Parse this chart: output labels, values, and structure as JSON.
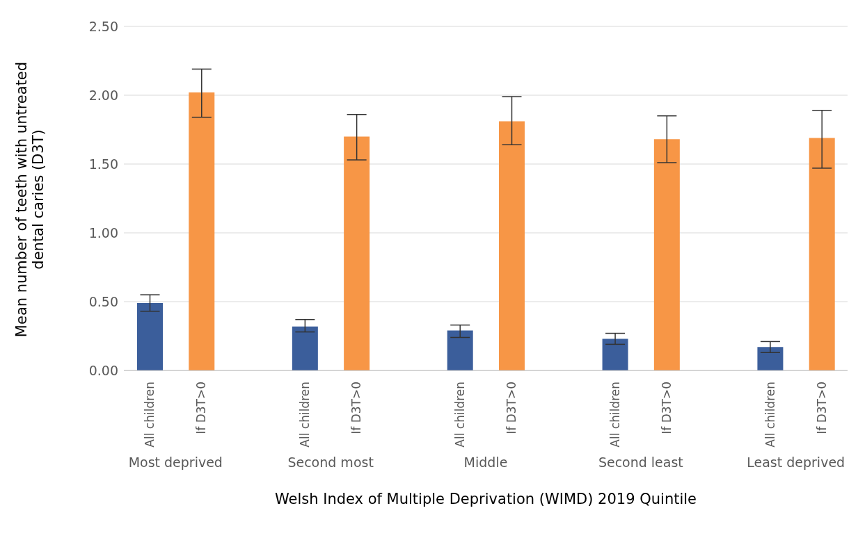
{
  "chart_data": {
    "type": "bar",
    "xlabel": "Welsh Index of Multiple Deprivation (WIMD) 2019 Quintile",
    "ylabel": "Mean number of teeth with untreated dental caries (D3T)",
    "categories": [
      "All children",
      "If D3T>0",
      null,
      "All children",
      "If D3T>0",
      null,
      "All children",
      "If D3T>0",
      null,
      "All children",
      "If D3T>0",
      null,
      "All children",
      "If D3T>0"
    ],
    "values": [
      0.49,
      2.02,
      null,
      0.32,
      1.7,
      null,
      0.29,
      1.81,
      null,
      0.23,
      1.68,
      null,
      0.17,
      1.69
    ],
    "colors": [
      "#3b5e9b",
      "#f79646",
      null,
      "#3b5e9b",
      "#f79646",
      null,
      "#3b5e9b",
      "#f79646",
      null,
      "#3b5e9b",
      "#f79646",
      null,
      "#3b5e9b",
      "#f79646"
    ],
    "errors": [
      [
        0.43,
        0.55
      ],
      [
        1.84,
        2.19
      ],
      null,
      [
        0.28,
        0.37
      ],
      [
        1.53,
        1.86
      ],
      null,
      [
        0.24,
        0.33
      ],
      [
        1.64,
        1.99
      ],
      null,
      [
        0.19,
        0.27
      ],
      [
        1.51,
        1.85
      ],
      null,
      [
        0.13,
        0.21
      ],
      [
        1.47,
        1.89
      ]
    ],
    "annotations": [
      "Most deprived",
      "Second most",
      "Middle",
      "Second least",
      "Least deprived"
    ],
    "ylim": [
      0,
      2.5
    ],
    "yticks": [
      {
        "value": 0,
        "label": "0.00"
      },
      {
        "value": 0.5,
        "label": "0.50"
      },
      {
        "value": 1,
        "label": "1.00"
      },
      {
        "value": 1.5,
        "label": "1.50"
      },
      {
        "value": 2,
        "label": "2.00"
      },
      {
        "value": 2.5,
        "label": "2.50"
      }
    ],
    "grid": "y",
    "legend": false
  }
}
